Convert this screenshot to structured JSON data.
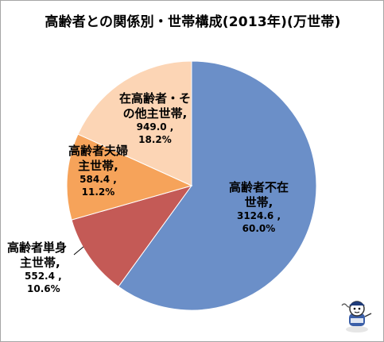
{
  "chart_data": {
    "type": "pie",
    "title": "高齢者との関係別・世帯構成(2013年)(万世帯)",
    "slices": [
      {
        "label": "高齢者不在世帯",
        "label_lines": [
          "高齢者不在",
          "世帯,"
        ],
        "value": 3124.6,
        "value_text": "3124.6 ,",
        "percent": "60.0%",
        "color": "#6b8fc8"
      },
      {
        "label": "高齢者単身主世帯",
        "label_lines": [
          "高齢者単身",
          "主世帯,"
        ],
        "value": 552.4,
        "value_text": "552.4 ,",
        "percent": "10.6%",
        "color": "#c45a56"
      },
      {
        "label": "高齢者夫婦主世帯",
        "label_lines": [
          "高齢者夫婦",
          "主世帯,"
        ],
        "value": 584.4,
        "value_text": "584.4 ,",
        "percent": "11.2%",
        "color": "#f6a35a"
      },
      {
        "label": "在高齢者・その他主世帯",
        "label_lines": [
          "在高齢者・そ",
          "の他主世帯,"
        ],
        "value": 949.0,
        "value_text": "949.0 ,",
        "percent": "18.2%",
        "color": "#fcd5b5"
      }
    ]
  }
}
